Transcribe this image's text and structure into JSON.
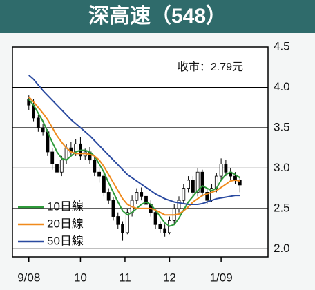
{
  "chart_data": {
    "type": "candlestick",
    "title": "深高速（548）",
    "annotation": "收市：2.79元",
    "x": [
      0,
      2,
      4,
      6,
      8,
      10,
      12,
      14,
      16,
      18,
      20,
      22,
      24,
      26,
      28,
      30,
      32,
      34,
      36,
      38,
      40,
      42,
      44,
      46,
      48,
      50,
      52,
      54,
      56,
      58,
      60,
      62,
      64,
      66,
      68,
      70,
      72,
      74,
      76,
      78,
      80,
      82,
      84,
      86,
      88,
      90
    ],
    "open": [
      3.85,
      3.78,
      3.62,
      3.5,
      3.45,
      3.2,
      3.05,
      2.95,
      3.1,
      3.25,
      3.2,
      3.3,
      3.15,
      3.2,
      3.1,
      2.95,
      2.9,
      2.7,
      2.6,
      2.4,
      2.3,
      2.2,
      2.45,
      2.6,
      2.7,
      2.65,
      2.55,
      2.45,
      2.3,
      2.25,
      2.2,
      2.35,
      2.5,
      2.6,
      2.75,
      2.85,
      2.7,
      2.95,
      2.7,
      2.6,
      2.75,
      2.9,
      3.05,
      2.95,
      2.9,
      2.85
    ],
    "high": [
      3.9,
      3.85,
      3.66,
      3.55,
      3.48,
      3.25,
      3.1,
      3.15,
      3.3,
      3.32,
      3.36,
      3.38,
      3.24,
      3.26,
      3.14,
      3.0,
      2.95,
      2.75,
      2.64,
      2.45,
      2.34,
      2.5,
      2.66,
      2.75,
      2.76,
      2.7,
      2.6,
      2.5,
      2.34,
      2.3,
      2.4,
      2.55,
      2.65,
      2.8,
      2.9,
      2.9,
      3.0,
      2.98,
      2.75,
      2.8,
      2.94,
      3.12,
      3.1,
      3.0,
      2.95,
      2.9
    ],
    "low": [
      3.72,
      3.58,
      3.45,
      3.4,
      3.15,
      2.98,
      2.8,
      2.9,
      3.05,
      3.15,
      3.15,
      3.1,
      3.1,
      3.05,
      2.9,
      2.82,
      2.65,
      2.55,
      2.35,
      2.25,
      2.1,
      2.18,
      2.4,
      2.55,
      2.6,
      2.5,
      2.4,
      2.25,
      2.2,
      2.15,
      2.18,
      2.3,
      2.45,
      2.55,
      2.7,
      2.65,
      2.65,
      2.65,
      2.55,
      2.58,
      2.7,
      2.85,
      2.9,
      2.85,
      2.8,
      2.7
    ],
    "close": [
      3.78,
      3.62,
      3.5,
      3.45,
      3.2,
      3.05,
      2.95,
      3.1,
      3.25,
      3.2,
      3.3,
      3.15,
      3.2,
      3.1,
      2.95,
      2.9,
      2.7,
      2.6,
      2.4,
      2.3,
      2.2,
      2.45,
      2.6,
      2.7,
      2.65,
      2.55,
      2.45,
      2.3,
      2.25,
      2.2,
      2.35,
      2.5,
      2.6,
      2.75,
      2.85,
      2.7,
      2.95,
      2.7,
      2.6,
      2.75,
      2.9,
      3.05,
      2.95,
      2.9,
      2.85,
      2.79
    ],
    "series": [
      {
        "name": "10日線",
        "color": "#2e9a3a",
        "values": [
          3.85,
          3.78,
          3.68,
          3.58,
          3.45,
          3.32,
          3.2,
          3.12,
          3.1,
          3.15,
          3.2,
          3.22,
          3.22,
          3.2,
          3.15,
          3.05,
          2.95,
          2.82,
          2.7,
          2.58,
          2.47,
          2.42,
          2.45,
          2.5,
          2.55,
          2.58,
          2.55,
          2.48,
          2.4,
          2.32,
          2.28,
          2.3,
          2.38,
          2.48,
          2.58,
          2.65,
          2.72,
          2.78,
          2.75,
          2.72,
          2.75,
          2.85,
          2.92,
          2.95,
          2.92,
          2.88
        ]
      },
      {
        "name": "20日線",
        "color": "#f08a1c",
        "values": [
          3.88,
          3.82,
          3.75,
          3.68,
          3.6,
          3.5,
          3.4,
          3.32,
          3.25,
          3.2,
          3.18,
          3.18,
          3.18,
          3.17,
          3.15,
          3.1,
          3.02,
          2.92,
          2.82,
          2.72,
          2.62,
          2.55,
          2.52,
          2.5,
          2.5,
          2.5,
          2.5,
          2.48,
          2.45,
          2.42,
          2.42,
          2.42,
          2.43,
          2.47,
          2.52,
          2.58,
          2.62,
          2.66,
          2.68,
          2.7,
          2.72,
          2.76,
          2.8,
          2.84,
          2.85,
          2.84
        ]
      },
      {
        "name": "50日線",
        "color": "#2a4aa0",
        "values": [
          4.15,
          4.1,
          4.03,
          3.96,
          3.9,
          3.84,
          3.78,
          3.72,
          3.66,
          3.6,
          3.55,
          3.5,
          3.45,
          3.4,
          3.34,
          3.28,
          3.22,
          3.16,
          3.1,
          3.04,
          2.98,
          2.92,
          2.88,
          2.84,
          2.8,
          2.76,
          2.72,
          2.68,
          2.65,
          2.62,
          2.6,
          2.58,
          2.57,
          2.56,
          2.55,
          2.55,
          2.55,
          2.56,
          2.58,
          2.6,
          2.62,
          2.63,
          2.64,
          2.65,
          2.66,
          2.66
        ]
      }
    ],
    "xlim": [
      -7,
      102
    ],
    "xticks": [
      {
        "value": 0,
        "label": "9/08"
      },
      {
        "value": 22,
        "label": "10"
      },
      {
        "value": 41,
        "label": "11"
      },
      {
        "value": 60,
        "label": "12"
      },
      {
        "value": 82,
        "label": "1/09"
      }
    ],
    "ylim": [
      1.9,
      4.5
    ],
    "yticks": [
      {
        "value": 2,
        "label": "2.0"
      },
      2.5,
      {
        "value": 3,
        "label": "3.0"
      },
      3.5,
      {
        "value": 4,
        "label": "4.0"
      },
      4.5
    ],
    "grid": true,
    "legend": "lower left"
  }
}
